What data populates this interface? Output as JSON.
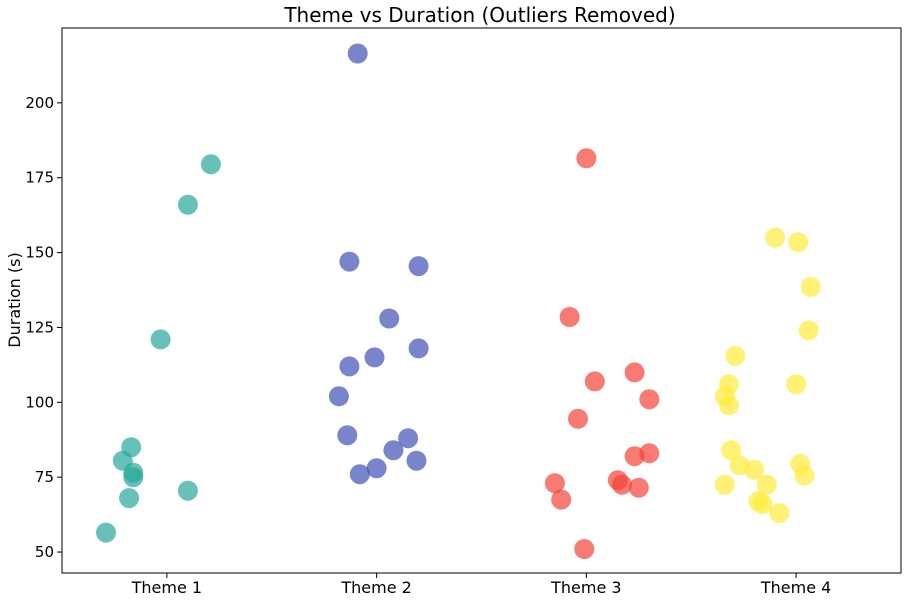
{
  "chart_data": {
    "type": "scatter",
    "title": "Theme vs Duration (Outliers Removed)",
    "xlabel": "",
    "ylabel": "Duration (s)",
    "categories": [
      "Theme 1",
      "Theme 2",
      "Theme 3",
      "Theme 4"
    ],
    "ylim": [
      43,
      225
    ],
    "yticks": [
      50,
      75,
      100,
      125,
      150,
      175,
      200
    ],
    "grid": false,
    "legend": "none",
    "series": [
      {
        "category": "Theme 1",
        "color": "#26a69a",
        "points": [
          {
            "x": 0.71,
            "y": 56.5
          },
          {
            "x": 0.79,
            "y": 80.5
          },
          {
            "x": 0.83,
            "y": 85.0
          },
          {
            "x": 0.84,
            "y": 76.5
          },
          {
            "x": 0.84,
            "y": 75.0
          },
          {
            "x": 0.82,
            "y": 68.0
          },
          {
            "x": 0.97,
            "y": 121.0
          },
          {
            "x": 1.1,
            "y": 166.0
          },
          {
            "x": 1.1,
            "y": 70.5
          },
          {
            "x": 1.21,
            "y": 179.5
          }
        ]
      },
      {
        "category": "Theme 2",
        "color": "#3f51b5",
        "points": [
          {
            "x": 1.91,
            "y": 216.5
          },
          {
            "x": 1.87,
            "y": 147.0
          },
          {
            "x": 2.2,
            "y": 145.5
          },
          {
            "x": 2.06,
            "y": 128.0
          },
          {
            "x": 2.2,
            "y": 118.0
          },
          {
            "x": 1.99,
            "y": 115.0
          },
          {
            "x": 1.87,
            "y": 112.0
          },
          {
            "x": 1.82,
            "y": 102.0
          },
          {
            "x": 1.86,
            "y": 89.0
          },
          {
            "x": 2.15,
            "y": 88.0
          },
          {
            "x": 2.08,
            "y": 84.0
          },
          {
            "x": 2.19,
            "y": 80.5
          },
          {
            "x": 2.0,
            "y": 78.0
          },
          {
            "x": 1.92,
            "y": 76.0
          }
        ]
      },
      {
        "category": "Theme 3",
        "color": "#f44336",
        "points": [
          {
            "x": 3.0,
            "y": 181.5
          },
          {
            "x": 2.92,
            "y": 128.5
          },
          {
            "x": 3.23,
            "y": 110.0
          },
          {
            "x": 3.04,
            "y": 107.0
          },
          {
            "x": 3.3,
            "y": 101.0
          },
          {
            "x": 2.96,
            "y": 94.5
          },
          {
            "x": 3.23,
            "y": 82.0
          },
          {
            "x": 3.3,
            "y": 83.0
          },
          {
            "x": 3.15,
            "y": 74.0
          },
          {
            "x": 3.17,
            "y": 72.5
          },
          {
            "x": 3.25,
            "y": 71.5
          },
          {
            "x": 2.85,
            "y": 73.0
          },
          {
            "x": 2.88,
            "y": 67.5
          },
          {
            "x": 2.99,
            "y": 51.0
          }
        ]
      },
      {
        "category": "Theme 4",
        "color": "#ffeb3b",
        "points": [
          {
            "x": 3.9,
            "y": 155.0
          },
          {
            "x": 4.01,
            "y": 153.5
          },
          {
            "x": 4.07,
            "y": 138.5
          },
          {
            "x": 4.06,
            "y": 124.0
          },
          {
            "x": 3.71,
            "y": 115.5
          },
          {
            "x": 3.68,
            "y": 106.0
          },
          {
            "x": 4.0,
            "y": 106.0
          },
          {
            "x": 3.66,
            "y": 102.0
          },
          {
            "x": 3.68,
            "y": 99.0
          },
          {
            "x": 3.69,
            "y": 84.0
          },
          {
            "x": 3.73,
            "y": 79.0
          },
          {
            "x": 4.02,
            "y": 79.5
          },
          {
            "x": 3.8,
            "y": 77.5
          },
          {
            "x": 4.04,
            "y": 75.5
          },
          {
            "x": 3.66,
            "y": 72.5
          },
          {
            "x": 3.86,
            "y": 72.5
          },
          {
            "x": 3.82,
            "y": 67.0
          },
          {
            "x": 3.84,
            "y": 66.0
          },
          {
            "x": 3.92,
            "y": 63.0
          }
        ]
      }
    ]
  }
}
